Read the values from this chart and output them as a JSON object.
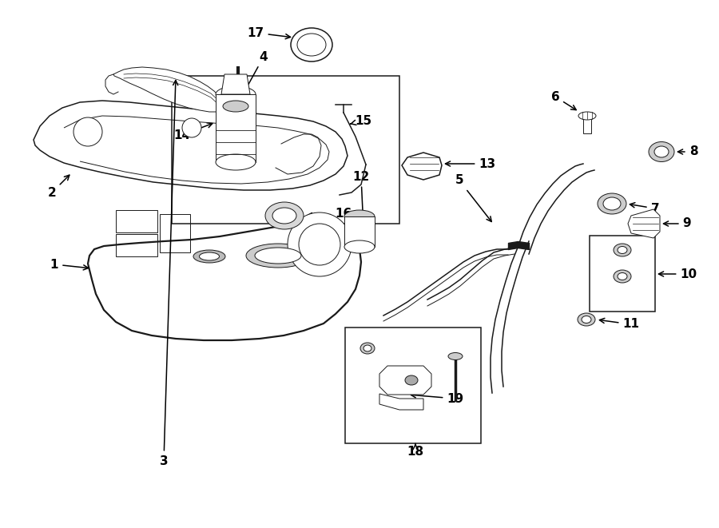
{
  "bg_color": "#ffffff",
  "line_color": "#1a1a1a",
  "lw_thin": 0.7,
  "lw_med": 1.1,
  "lw_thick": 1.6
}
